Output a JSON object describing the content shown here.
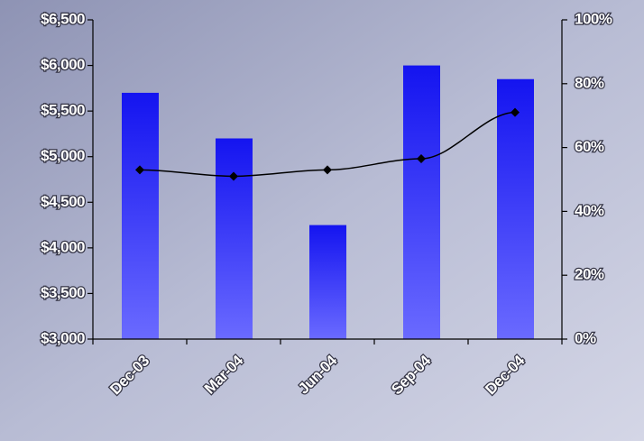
{
  "chart_data": {
    "type": "bar_line",
    "categories": [
      "Dec-03",
      "Mar-04",
      "Jun-04",
      "Sep-04",
      "Dec-04"
    ],
    "series": [
      {
        "type": "bar",
        "color": "#2020ff",
        "values": [
          5700,
          5200,
          4250,
          6000,
          5850
        ]
      },
      {
        "type": "line",
        "color": "#000000",
        "axis": "y2",
        "values": [
          53,
          51,
          53,
          56.5,
          71
        ]
      }
    ],
    "ylim": [
      3000,
      6500
    ],
    "yticks": [
      {
        "value": 3000,
        "label": "$3,000"
      },
      {
        "value": 3500,
        "label": "$3,500"
      },
      {
        "value": 4000,
        "label": "$4,000"
      },
      {
        "value": 4500,
        "label": "$4,500"
      },
      {
        "value": 5000,
        "label": "$5,000"
      },
      {
        "value": 5500,
        "label": "$5,500"
      },
      {
        "value": 6000,
        "label": "$6,000"
      },
      {
        "value": 6500,
        "label": "$6,500"
      }
    ],
    "y2lim": [
      0,
      100
    ],
    "y2ticks": [
      {
        "value": 0,
        "label": "0%"
      },
      {
        "value": 20,
        "label": "20%"
      },
      {
        "value": 40,
        "label": "40%"
      },
      {
        "value": 60,
        "label": "60%"
      },
      {
        "value": 80,
        "label": "80%"
      },
      {
        "value": 100,
        "label": "100%"
      }
    ],
    "grid": false
  }
}
